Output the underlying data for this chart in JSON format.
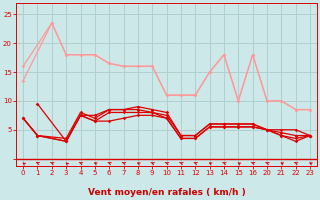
{
  "bg_color": "#cce8e8",
  "grid_color": "#b0d0d0",
  "line_color_dark": "#dd0000",
  "line_color_light": "#ff9999",
  "xlabel": "Vent moyen/en rafales ( km/h )",
  "xlabel_color": "#cc0000",
  "ytick_vals": [
    0,
    5,
    10,
    15,
    20,
    25
  ],
  "xtick_labels": [
    "0",
    "1",
    "2",
    "3",
    "4",
    "5",
    "6",
    "7",
    "8",
    "9",
    "10",
    "11",
    "12",
    "13",
    "14",
    "15",
    "16",
    "20",
    "21",
    "22",
    "23"
  ],
  "xlim": [
    -0.5,
    20.5
  ],
  "ylim": [
    -1.2,
    27
  ],
  "lines_dark": [
    {
      "xi": [
        0,
        1,
        3,
        4,
        5,
        6,
        7,
        8,
        9,
        10,
        11,
        12,
        13,
        14,
        15,
        16,
        17,
        18,
        19,
        20
      ],
      "y": [
        7,
        4,
        3,
        7.5,
        6.5,
        8,
        8,
        8,
        8,
        7,
        3.5,
        3.5,
        5.5,
        5.5,
        5.5,
        5.5,
        5,
        4,
        3,
        4
      ]
    },
    {
      "xi": [
        0,
        1,
        3,
        4,
        5,
        6,
        7,
        8,
        9,
        10,
        11,
        12,
        13,
        14,
        15,
        16,
        17,
        18,
        19,
        20
      ],
      "y": [
        7,
        4,
        3,
        7.5,
        6.5,
        6.5,
        7,
        7.5,
        7.5,
        7,
        3.5,
        3.5,
        5.5,
        5.5,
        5.5,
        5.5,
        5,
        5,
        5,
        4
      ]
    },
    {
      "xi": [
        0,
        1,
        3,
        4,
        5,
        6,
        7,
        8,
        9,
        10,
        11,
        12,
        13,
        14,
        15,
        16,
        17,
        18,
        19,
        20
      ],
      "y": [
        7,
        4,
        3.5,
        8,
        7,
        8.5,
        8.5,
        8.5,
        8,
        7.5,
        4,
        4,
        6,
        6,
        6,
        6,
        5,
        4,
        3.5,
        4
      ]
    },
    {
      "xi": [
        1,
        3,
        4,
        5,
        6,
        7,
        8,
        9,
        10,
        11,
        12,
        13,
        14,
        15,
        16,
        17,
        18,
        19,
        20
      ],
      "y": [
        9.5,
        3,
        7.5,
        7.5,
        8.5,
        8.5,
        9,
        8.5,
        8,
        4,
        4,
        6,
        6,
        6,
        6,
        5,
        4.5,
        4,
        4
      ]
    }
  ],
  "lines_light": [
    {
      "xi": [
        0,
        2,
        3,
        4,
        5,
        6,
        7,
        8,
        9,
        10,
        11,
        12,
        13,
        14,
        15,
        16,
        17,
        18,
        19,
        20
      ],
      "y": [
        16,
        23.5,
        18,
        18,
        18,
        16.5,
        16,
        16,
        16,
        11,
        11,
        11,
        15,
        18,
        10,
        18,
        10,
        10,
        8.5,
        8.5
      ]
    },
    {
      "xi": [
        0,
        2,
        3,
        4,
        5,
        6,
        7,
        8,
        9,
        10,
        11,
        12,
        13,
        14,
        15,
        16,
        17,
        18,
        19,
        20
      ],
      "y": [
        13.5,
        23.5,
        18,
        18,
        18,
        16.5,
        16,
        16,
        16,
        11,
        11,
        11,
        15,
        18,
        10,
        18,
        10,
        10,
        8.5,
        8.5
      ]
    }
  ],
  "arrow_xi": [
    0,
    1,
    2,
    3,
    4,
    5,
    6,
    7,
    8,
    9,
    10,
    11,
    12,
    13,
    14,
    15,
    16,
    17,
    18,
    19,
    20
  ],
  "arrow_angles": [
    200,
    220,
    215,
    200,
    215,
    210,
    220,
    215,
    210,
    215,
    215,
    215,
    220,
    210,
    215,
    205,
    220,
    215,
    210,
    215,
    210
  ]
}
